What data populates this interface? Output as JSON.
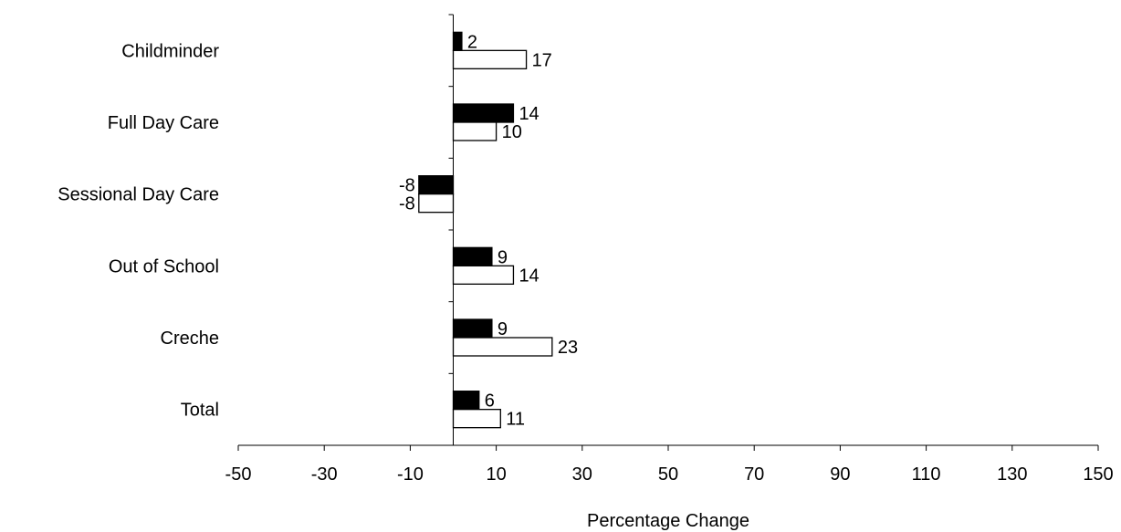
{
  "chart_data": {
    "type": "bar",
    "orientation": "horizontal",
    "title": "",
    "xlabel": "Percentage Change",
    "ylabel": "",
    "xlim": [
      -50,
      150
    ],
    "xticks": [
      -50,
      -30,
      -10,
      10,
      30,
      50,
      70,
      90,
      110,
      130,
      150
    ],
    "grid": false,
    "legend": "none",
    "categories": [
      "Childminder",
      "Full Day Care",
      "Sessional Day Care",
      "Out of School",
      "Creche",
      "Total"
    ],
    "series": [
      {
        "color": "#000000",
        "values": [
          2,
          14,
          -8,
          9,
          9,
          6
        ]
      },
      {
        "color": "#ffffff",
        "values": [
          17,
          10,
          -8,
          14,
          23,
          11
        ]
      }
    ]
  }
}
